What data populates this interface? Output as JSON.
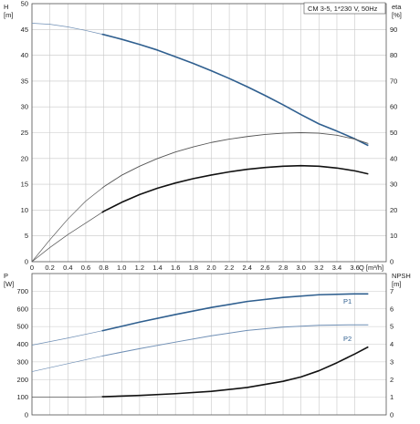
{
  "colors": {
    "grid": "#c8c8c8",
    "axis": "#555555",
    "text": "#222222",
    "blue": "#2f5f8f",
    "black": "#111111",
    "thin_black": "#555555",
    "thin_blue": "#6f8fb5"
  },
  "chart_data": [
    {
      "type": "line",
      "title": "CM 3-5, 1*230 V, 50Hz",
      "xlabel": "Q [m³/h]",
      "ylabel": "H\n[m]",
      "y2label": "eta\n[%]",
      "xlim": [
        0,
        3.95
      ],
      "ylim": [
        0,
        50
      ],
      "y2lim": [
        0,
        100
      ],
      "grid": true,
      "x_ticks": [
        "0",
        "0.2",
        "0.4",
        "0.6",
        "0.8",
        "1.0",
        "1.2",
        "1.4",
        "1.6",
        "1.8",
        "2.0",
        "2.2",
        "2.4",
        "2.6",
        "2.8",
        "3.0",
        "3.2",
        "3.4",
        "3.6"
      ],
      "y_ticks": [
        "0",
        "5",
        "10",
        "15",
        "20",
        "25",
        "30",
        "35",
        "40",
        "45",
        "50"
      ],
      "y2_ticks": [
        "0",
        "10",
        "20",
        "30",
        "40",
        "50",
        "60",
        "70",
        "80",
        "90"
      ],
      "x_tick_values": [
        0,
        0.2,
        0.4,
        0.6,
        0.8,
        1.0,
        1.2,
        1.4,
        1.6,
        1.8,
        2.0,
        2.2,
        2.4,
        2.6,
        2.8,
        3.0,
        3.2,
        3.4,
        3.6
      ],
      "y_tick_values": [
        0,
        5,
        10,
        15,
        20,
        25,
        30,
        35,
        40,
        45,
        50
      ],
      "y2_tick_values": [
        0,
        10,
        20,
        30,
        40,
        50,
        60,
        70,
        80,
        90
      ],
      "series": [
        {
          "id": "head",
          "axis": "left",
          "style": "blue",
          "x": [
            0,
            0.2,
            0.4,
            0.6,
            0.8,
            1.0,
            1.2,
            1.4,
            1.6,
            1.8,
            2.0,
            2.2,
            2.4,
            2.6,
            2.8,
            3.0,
            3.2,
            3.4,
            3.6,
            3.75
          ],
          "y": [
            46.2,
            46.0,
            45.5,
            44.8,
            44.0,
            43.1,
            42.1,
            41.0,
            39.7,
            38.4,
            37.0,
            35.5,
            33.9,
            32.2,
            30.4,
            28.5,
            26.7,
            25.3,
            23.8,
            22.5
          ],
          "solid_from": 0.78
        },
        {
          "id": "eta-total",
          "axis": "right",
          "style": "thin_black",
          "x": [
            0,
            0.2,
            0.4,
            0.6,
            0.8,
            1.0,
            1.2,
            1.4,
            1.6,
            1.8,
            2.0,
            2.2,
            2.4,
            2.6,
            2.8,
            3.0,
            3.2,
            3.4,
            3.6,
            3.75
          ],
          "y": [
            0,
            8.5,
            16.5,
            23.5,
            29.0,
            33.5,
            37.0,
            40.0,
            42.5,
            44.5,
            46.2,
            47.5,
            48.5,
            49.3,
            49.8,
            50.0,
            49.8,
            49.0,
            47.5,
            45.8
          ],
          "solid_from": 0.78
        },
        {
          "id": "eta-pump",
          "axis": "right",
          "style": "black",
          "x": [
            0,
            0.2,
            0.4,
            0.6,
            0.8,
            1.0,
            1.2,
            1.4,
            1.6,
            1.8,
            2.0,
            2.2,
            2.4,
            2.6,
            2.8,
            3.0,
            3.2,
            3.4,
            3.6,
            3.75
          ],
          "y": [
            0,
            5.5,
            10.5,
            15.0,
            19.5,
            23.0,
            26.0,
            28.5,
            30.5,
            32.2,
            33.6,
            34.8,
            35.8,
            36.5,
            37.0,
            37.2,
            37.0,
            36.3,
            35.2,
            34.0
          ],
          "solid_from": 0.78
        }
      ]
    },
    {
      "type": "line",
      "xlabel": "",
      "ylabel": "P\n[W]",
      "y2label": "NPSH\n[m]",
      "xlim": [
        0,
        3.95
      ],
      "ylim": [
        0,
        800
      ],
      "y2lim": [
        0,
        8
      ],
      "grid": true,
      "y_ticks": [
        "0",
        "100",
        "200",
        "300",
        "400",
        "500",
        "600",
        "700"
      ],
      "y2_ticks": [
        "0",
        "1",
        "2",
        "3",
        "4",
        "5",
        "6",
        "7"
      ],
      "y_tick_values": [
        0,
        100,
        200,
        300,
        400,
        500,
        600,
        700
      ],
      "y2_tick_values": [
        0,
        1,
        2,
        3,
        4,
        5,
        6,
        7
      ],
      "series": [
        {
          "id": "p1",
          "name": "P1",
          "axis": "left",
          "style": "blue",
          "x": [
            0,
            0.4,
            0.8,
            1.2,
            1.6,
            2.0,
            2.4,
            2.8,
            3.2,
            3.6,
            3.75
          ],
          "y": [
            395,
            435,
            478,
            525,
            568,
            608,
            642,
            665,
            680,
            685,
            685
          ],
          "solid_from": 0.78
        },
        {
          "id": "p2",
          "name": "P2",
          "axis": "left",
          "style": "thin_blue",
          "x": [
            0,
            0.4,
            0.8,
            1.2,
            1.6,
            2.0,
            2.4,
            2.8,
            3.2,
            3.6,
            3.75
          ],
          "y": [
            245,
            290,
            335,
            375,
            412,
            448,
            478,
            497,
            507,
            510,
            510
          ],
          "solid_from": 0.78
        },
        {
          "id": "npsh",
          "axis": "right",
          "style": "black",
          "x": [
            0,
            0.4,
            0.8,
            1.2,
            1.6,
            2.0,
            2.4,
            2.8,
            3.0,
            3.2,
            3.4,
            3.6,
            3.75
          ],
          "y": [
            1.0,
            1.0,
            1.03,
            1.1,
            1.2,
            1.33,
            1.55,
            1.9,
            2.15,
            2.5,
            2.95,
            3.45,
            3.85
          ],
          "solid_from": 0.78
        }
      ]
    }
  ]
}
